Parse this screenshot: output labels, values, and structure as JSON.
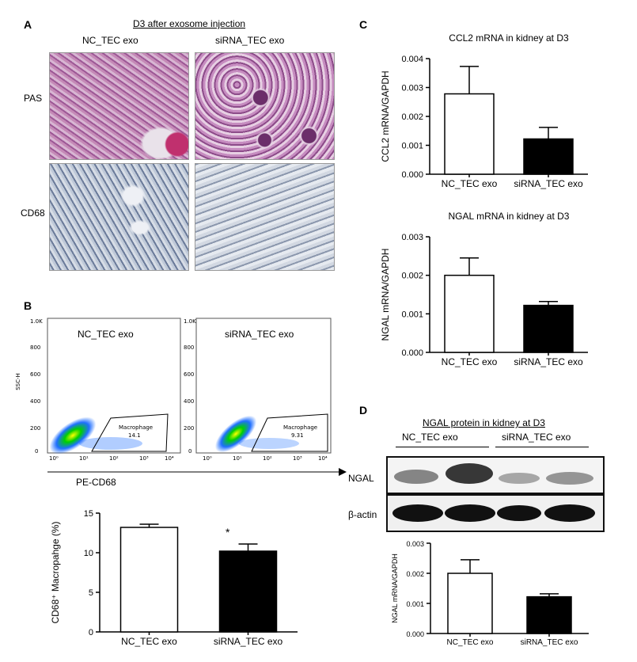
{
  "panel_a": {
    "letter": "A",
    "title": "D3 after exosome injection",
    "col_left": "NC_TEC exo",
    "col_right": "siRNA_TEC exo",
    "row_top": "PAS",
    "row_bottom": "CD68"
  },
  "panel_b": {
    "letter": "B",
    "flow_left_label": "NC_TEC exo",
    "flow_right_label": "siRNA_TEC exo",
    "flow_y_axis_label": "SSC-H",
    "flow_y_ticks": [
      "1.0K",
      "800",
      "600",
      "400",
      "200",
      "0"
    ],
    "flow_x_ticks": [
      "10⁰",
      "10¹",
      "10²",
      "10³",
      "10⁴"
    ],
    "gate_label": "Macrophage",
    "gate_left_value": "14.1",
    "gate_right_value": "9.31",
    "flow_x_axis_label": "PE-CD68",
    "significance": "*"
  },
  "panel_c": {
    "letter": "C"
  },
  "panel_d": {
    "letter": "D",
    "title": "NGAL protein in kidney at D3",
    "group_left": "NC_TEC exo",
    "group_right": "siRNA_TEC exo",
    "row_ngal": "NGAL",
    "row_actin": "β-actin"
  },
  "chart_data": [
    {
      "type": "bar",
      "title": "CCL2 mRNA in kidney at D3",
      "categories": [
        "NC_TEC exo",
        "siRNA_TEC exo"
      ],
      "values": [
        0.00278,
        0.00122
      ],
      "errors": [
        0.00095,
        0.0004
      ],
      "ylabel": "CCL2 mRNA/GAPDH",
      "ylim": [
        0,
        0.004
      ],
      "yticks": [
        "0.000",
        "0.001",
        "0.002",
        "0.003",
        "0.004"
      ],
      "colors": [
        "#ffffff",
        "#000000"
      ]
    },
    {
      "type": "bar",
      "title": "NGAL mRNA in kidney at D3",
      "categories": [
        "NC_TEC exo",
        "siRNA_TEC exo"
      ],
      "values": [
        0.002,
        0.00122
      ],
      "errors": [
        0.00045,
        0.0001
      ],
      "ylabel": "NGAL mRNA/GAPDH",
      "ylim": [
        0,
        0.003
      ],
      "yticks": [
        "0.000",
        "0.001",
        "0.002",
        "0.003"
      ],
      "colors": [
        "#ffffff",
        "#000000"
      ]
    },
    {
      "type": "bar",
      "title": "",
      "categories": [
        "NC_TEC exo",
        "siRNA_TEC exo"
      ],
      "values": [
        13.2,
        10.2
      ],
      "errors": [
        0.4,
        0.9
      ],
      "ylabel": "CD68⁺ Macropahge (%)",
      "ylim": [
        0,
        15
      ],
      "yticks": [
        "0",
        "5",
        "10",
        "15"
      ],
      "colors": [
        "#ffffff",
        "#000000"
      ]
    },
    {
      "type": "bar",
      "title": "",
      "categories": [
        "NC_TEC exo",
        "siRNA_TEC exo"
      ],
      "values": [
        0.002,
        0.00122
      ],
      "errors": [
        0.00045,
        0.0001
      ],
      "ylabel": "NGAL mRNA/GAPDH",
      "ylim": [
        0,
        0.003
      ],
      "yticks": [
        "0.000",
        "0.001",
        "0.002",
        "0.003"
      ],
      "colors": [
        "#ffffff",
        "#000000"
      ]
    }
  ]
}
